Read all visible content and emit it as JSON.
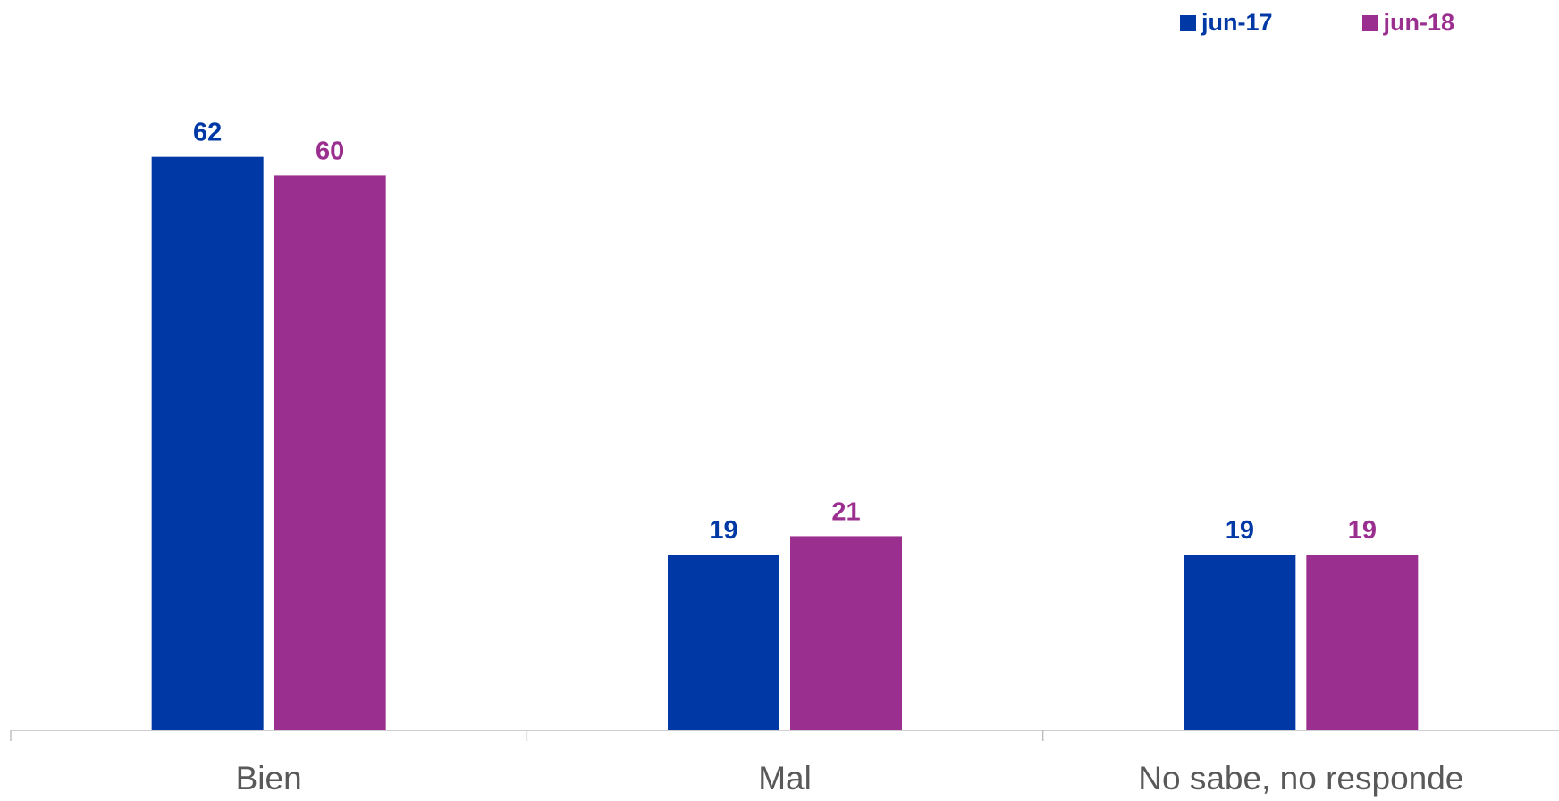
{
  "chart_data": {
    "type": "bar",
    "categories": [
      "Bien",
      "Mal",
      "No sabe, no responde"
    ],
    "series": [
      {
        "name": "jun-17",
        "values": [
          62,
          19,
          19
        ],
        "color": "#0039A6"
      },
      {
        "name": "jun-18",
        "values": [
          60,
          21,
          19
        ],
        "color": "#9B2F8F"
      }
    ],
    "legend": {
      "position": "top-right"
    },
    "grid": false,
    "ylim": [
      0,
      70
    ],
    "data_labels": true
  }
}
